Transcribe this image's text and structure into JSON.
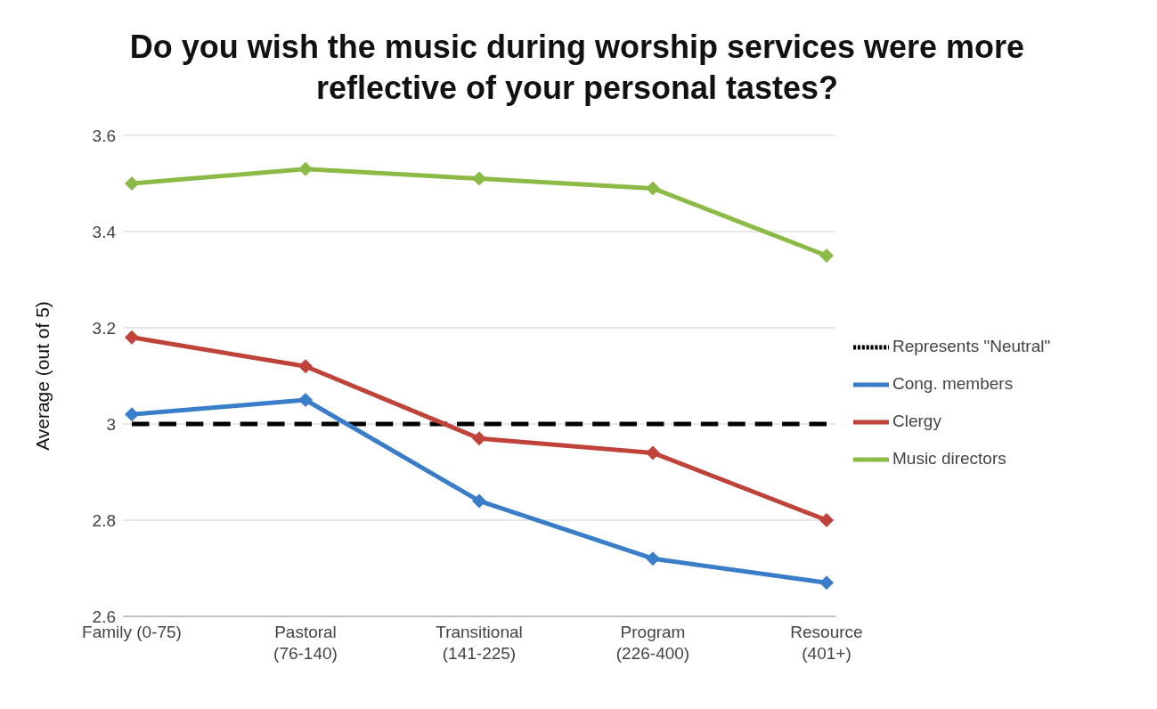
{
  "chart_data": {
    "type": "line",
    "title": "Do you wish the music during worship services were more reflective of your personal tastes?",
    "ylabel": "Average (out of 5)",
    "categories": [
      "Family (0-75)",
      "Pastoral (76-140)",
      "Transitional (141-225)",
      "Program (226-400)",
      "Resource (401+)"
    ],
    "series": [
      {
        "name": "Represents \"Neutral\"",
        "color": "#000000",
        "values": [
          3,
          3,
          3,
          3,
          3
        ],
        "line_style": "dashed",
        "marker": "none"
      },
      {
        "name": "Cong. members",
        "color": "#3a7dc9",
        "values": [
          3.02,
          3.05,
          2.84,
          2.72,
          2.67
        ],
        "marker": "diamond"
      },
      {
        "name": "Clergy",
        "color": "#c0433a",
        "values": [
          3.18,
          3.12,
          2.97,
          2.94,
          2.8
        ],
        "marker": "diamond"
      },
      {
        "name": "Music directors",
        "color": "#8cba46",
        "values": [
          3.5,
          3.53,
          3.51,
          3.49,
          3.35
        ],
        "marker": "diamond"
      }
    ],
    "ylim": [
      2.6,
      3.6
    ],
    "yticks": [
      2.6,
      2.8,
      3,
      3.2,
      3.4,
      3.6
    ],
    "grid": "y",
    "legend": "right"
  }
}
